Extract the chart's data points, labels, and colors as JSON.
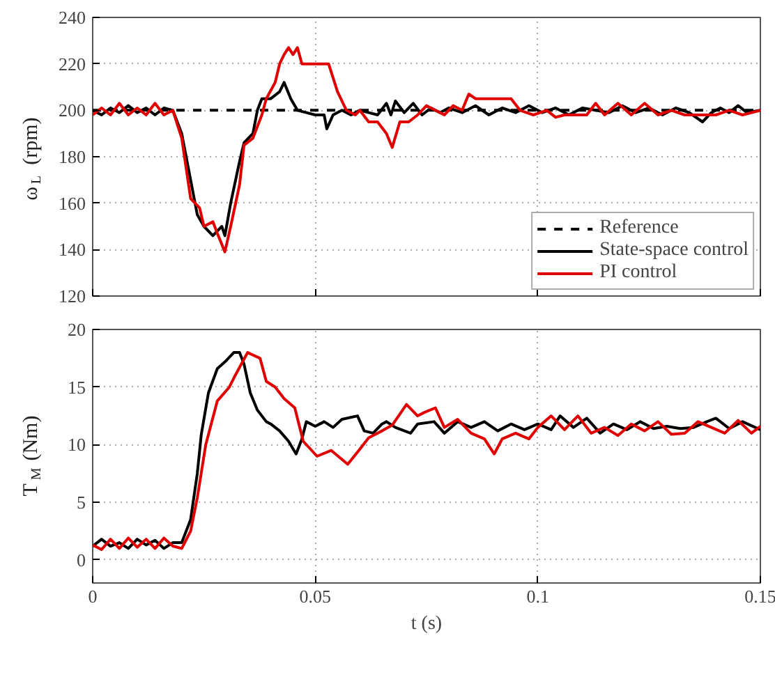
{
  "chart_data": [
    {
      "type": "line",
      "ylabel": "ω$_{L}$ (rpm)",
      "xlim": [
        0,
        0.15
      ],
      "xticks": [
        0,
        0.05,
        0.1,
        0.15
      ],
      "ylim": [
        120,
        240
      ],
      "yticks": [
        120,
        140,
        160,
        180,
        200,
        220,
        240
      ],
      "grid": true,
      "tick_labels": "y",
      "legend": "bottom right",
      "series": [
        {
          "name": "Reference",
          "color": "#000000",
          "line_style": "dashed",
          "x": [
            0,
            0.15
          ],
          "values": [
            200,
            200
          ]
        },
        {
          "name": "State-space control",
          "color": "#000000",
          "line_style": "solid",
          "x": [
            0,
            0.002,
            0.004,
            0.006,
            0.008,
            0.01,
            0.012,
            0.014,
            0.016,
            0.018,
            0.02,
            0.022,
            0.0235,
            0.025,
            0.027,
            0.029,
            0.0297,
            0.031,
            0.033,
            0.034,
            0.036,
            0.037,
            0.038,
            0.04,
            0.042,
            0.043,
            0.0445,
            0.046,
            0.048,
            0.05,
            0.052,
            0.0526,
            0.054,
            0.056,
            0.058,
            0.06,
            0.062,
            0.064,
            0.066,
            0.067,
            0.068,
            0.07,
            0.072,
            0.074,
            0.076,
            0.078,
            0.08,
            0.083,
            0.086,
            0.089,
            0.092,
            0.095,
            0.098,
            0.101,
            0.104,
            0.107,
            0.11,
            0.113,
            0.116,
            0.119,
            0.122,
            0.125,
            0.128,
            0.131,
            0.134,
            0.137,
            0.139,
            0.141,
            0.143,
            0.145,
            0.147,
            0.15
          ],
          "values": [
            200,
            198,
            201,
            199,
            202,
            199,
            201,
            198,
            201,
            200,
            190,
            170,
            155,
            150,
            146,
            150,
            146,
            160,
            178,
            186,
            190,
            200,
            205,
            205,
            208,
            212,
            205,
            200,
            199,
            198,
            198,
            192,
            198,
            200,
            198,
            200,
            199,
            198,
            203,
            198,
            204,
            199,
            203,
            198,
            201,
            199,
            201,
            199,
            202,
            198,
            201,
            199,
            202,
            199,
            201,
            198,
            201,
            200,
            199,
            202,
            199,
            201,
            198,
            201,
            199,
            195,
            199,
            201,
            199,
            202,
            199,
            200
          ]
        },
        {
          "name": "PI control",
          "color": "#e00000",
          "line_style": "solid",
          "x": [
            0,
            0.002,
            0.004,
            0.006,
            0.008,
            0.01,
            0.012,
            0.014,
            0.016,
            0.018,
            0.02,
            0.022,
            0.024,
            0.025,
            0.027,
            0.028,
            0.0297,
            0.031,
            0.033,
            0.034,
            0.036,
            0.038,
            0.039,
            0.041,
            0.042,
            0.043,
            0.044,
            0.045,
            0.046,
            0.047,
            0.05,
            0.053,
            0.055,
            0.057,
            0.059,
            0.06,
            0.062,
            0.064,
            0.066,
            0.0673,
            0.069,
            0.071,
            0.073,
            0.075,
            0.077,
            0.079,
            0.081,
            0.083,
            0.0845,
            0.086,
            0.09,
            0.094,
            0.096,
            0.099,
            0.102,
            0.104,
            0.106,
            0.108,
            0.111,
            0.113,
            0.115,
            0.118,
            0.121,
            0.124,
            0.127,
            0.13,
            0.133,
            0.136,
            0.14,
            0.143,
            0.146,
            0.15
          ],
          "values": [
            198,
            201,
            198,
            203,
            198,
            201,
            198,
            203,
            198,
            200,
            188,
            162,
            158,
            150,
            152,
            147,
            139,
            150,
            168,
            185,
            188,
            198,
            205,
            212,
            220,
            224,
            227,
            224,
            227,
            220,
            220,
            220,
            208,
            200,
            198,
            200,
            195,
            195,
            190,
            184,
            195,
            195,
            198,
            202,
            200,
            198,
            202,
            200,
            207,
            205,
            205,
            205,
            200,
            198,
            200,
            197,
            198,
            198,
            198,
            203,
            198,
            203,
            198,
            203,
            198,
            200,
            198,
            198,
            198,
            200,
            198,
            200
          ]
        }
      ]
    },
    {
      "type": "line",
      "ylabel": "T$_{M}$ (Nm)",
      "xlabel": "t (s)",
      "xlim": [
        0,
        0.15
      ],
      "xticks": [
        0,
        0.05,
        0.1,
        0.15
      ],
      "ylim": [
        -2,
        20
      ],
      "yticks": [
        0,
        5,
        10,
        15,
        20
      ],
      "grid": true,
      "series": [
        {
          "color": "#000000",
          "line_style": "solid",
          "x": [
            0,
            0.002,
            0.004,
            0.006,
            0.008,
            0.01,
            0.012,
            0.014,
            0.016,
            0.018,
            0.02,
            0.022,
            0.0235,
            0.0244,
            0.026,
            0.028,
            0.03,
            0.0317,
            0.033,
            0.034,
            0.0354,
            0.037,
            0.039,
            0.04,
            0.042,
            0.044,
            0.0457,
            0.047,
            0.048,
            0.05,
            0.052,
            0.054,
            0.056,
            0.0595,
            0.061,
            0.063,
            0.065,
            0.066,
            0.068,
            0.0714,
            0.073,
            0.0767,
            0.079,
            0.082,
            0.085,
            0.088,
            0.091,
            0.094,
            0.097,
            0.1,
            0.103,
            0.105,
            0.108,
            0.111,
            0.114,
            0.117,
            0.12,
            0.123,
            0.126,
            0.129,
            0.132,
            0.135,
            0.138,
            0.14,
            0.143,
            0.146,
            0.15
          ],
          "values": [
            1.2,
            1.8,
            1.2,
            1.5,
            1.0,
            1.8,
            1.3,
            1.7,
            1.0,
            1.5,
            1.5,
            3.5,
            7.5,
            10.9,
            14.5,
            16.6,
            17.3,
            18,
            18,
            17,
            14.5,
            13,
            12,
            11.8,
            11.2,
            10.3,
            9.2,
            10.5,
            12,
            11.6,
            12,
            11.5,
            12.2,
            12.5,
            11.2,
            11.0,
            11.8,
            12,
            11.5,
            11,
            11.8,
            12,
            11,
            12,
            11.5,
            12,
            11.2,
            11.8,
            11.3,
            11.8,
            11.3,
            12.5,
            11.5,
            12.3,
            11.0,
            11.8,
            11.3,
            12,
            11.4,
            11.6,
            11.4,
            11.5,
            12.0,
            12.3,
            11.4,
            12.0,
            11.3
          ]
        },
        {
          "color": "#e00000",
          "line_style": "solid",
          "x": [
            0,
            0.002,
            0.004,
            0.006,
            0.008,
            0.01,
            0.012,
            0.014,
            0.016,
            0.018,
            0.02,
            0.022,
            0.0235,
            0.0254,
            0.028,
            0.0307,
            0.032,
            0.0348,
            0.0376,
            0.039,
            0.041,
            0.043,
            0.0454,
            0.0473,
            0.0504,
            0.0536,
            0.0573,
            0.06,
            0.062,
            0.065,
            0.0673,
            0.0705,
            0.073,
            0.0745,
            0.077,
            0.079,
            0.082,
            0.085,
            0.088,
            0.0902,
            0.092,
            0.095,
            0.098,
            0.1,
            0.103,
            0.106,
            0.109,
            0.112,
            0.115,
            0.118,
            0.121,
            0.124,
            0.127,
            0.13,
            0.133,
            0.136,
            0.139,
            0.142,
            0.145,
            0.148,
            0.15
          ],
          "values": [
            1.3,
            0.9,
            1.8,
            1.0,
            1.9,
            1.1,
            1.8,
            1.0,
            1.9,
            1.2,
            1.0,
            2.5,
            5.4,
            10,
            13.8,
            15,
            16,
            18,
            17.5,
            15.5,
            15,
            14,
            13.2,
            10.3,
            9,
            9.5,
            8.3,
            9.6,
            10.6,
            11.2,
            11.7,
            13.5,
            12.5,
            12.8,
            13.2,
            11.5,
            12.2,
            11.0,
            10.5,
            9.2,
            10.5,
            11.0,
            10.5,
            11.5,
            12.5,
            11.3,
            12.5,
            11.0,
            11.5,
            10.8,
            11.8,
            11.2,
            12.0,
            10.9,
            11.0,
            12.0,
            11.5,
            11.0,
            12.1,
            11.0,
            11.6
          ]
        }
      ]
    }
  ]
}
